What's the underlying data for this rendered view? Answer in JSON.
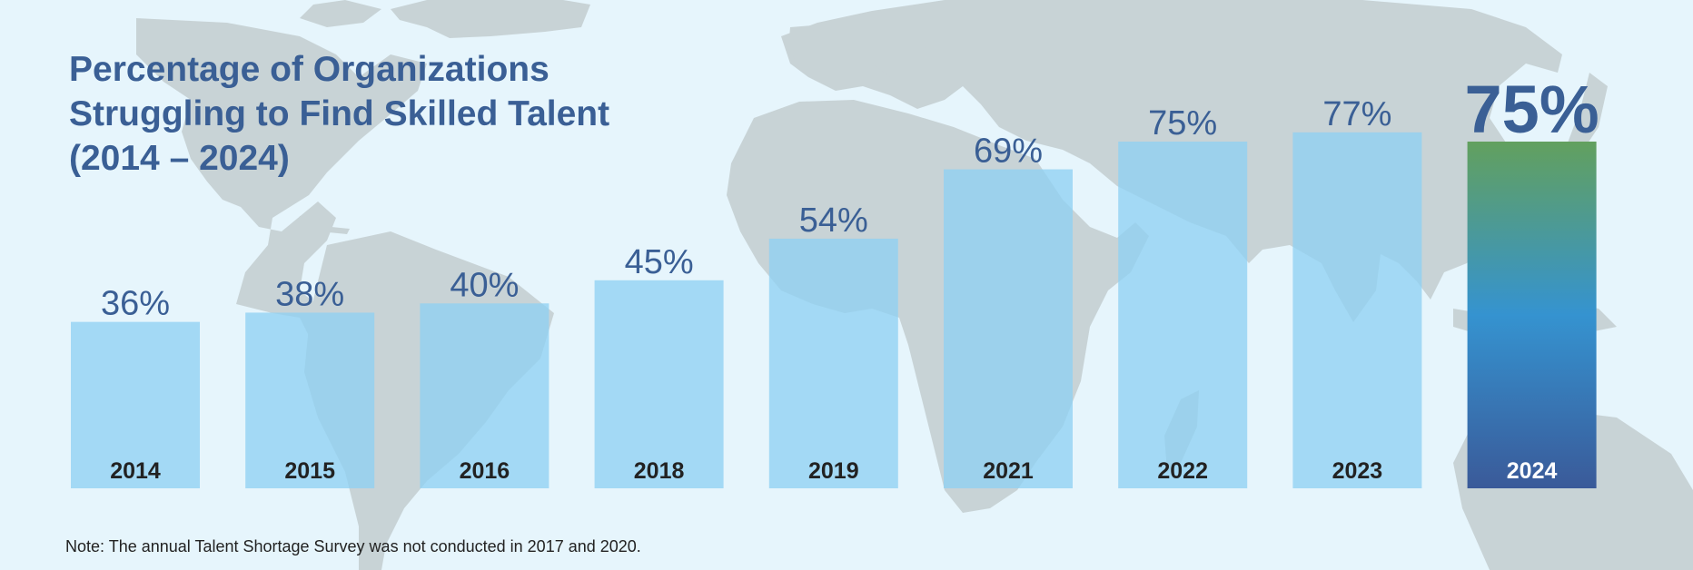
{
  "chart_data": {
    "type": "bar",
    "title": "Percentage of Organizations Struggling to Find Skilled Talent (2014 – 2024)",
    "categories": [
      "2014",
      "2015",
      "2016",
      "2018",
      "2019",
      "2021",
      "2022",
      "2023",
      "2024"
    ],
    "values": [
      36,
      38,
      40,
      45,
      54,
      69,
      75,
      77,
      75
    ],
    "value_labels": [
      "36%",
      "38%",
      "40%",
      "45%",
      "54%",
      "69%",
      "75%",
      "77%",
      "75%"
    ],
    "highlight_category": "2024",
    "xlabel": "",
    "ylabel": "",
    "ylim": [
      0,
      85
    ],
    "grid": false,
    "note": "Note: The annual Talent Shortage Survey was not conducted in 2017 and 2020."
  },
  "colors": {
    "background": "#e6f5fc",
    "map_land": "#c8d3d6",
    "bar": "#8fd1f2",
    "value_label": "#3a5f95",
    "category_label": "#222222",
    "highlight_top": "#62a05e",
    "highlight_mid": "#3593d0",
    "highlight_bottom": "#3a5a99",
    "highlight_label": "#ffffff"
  }
}
